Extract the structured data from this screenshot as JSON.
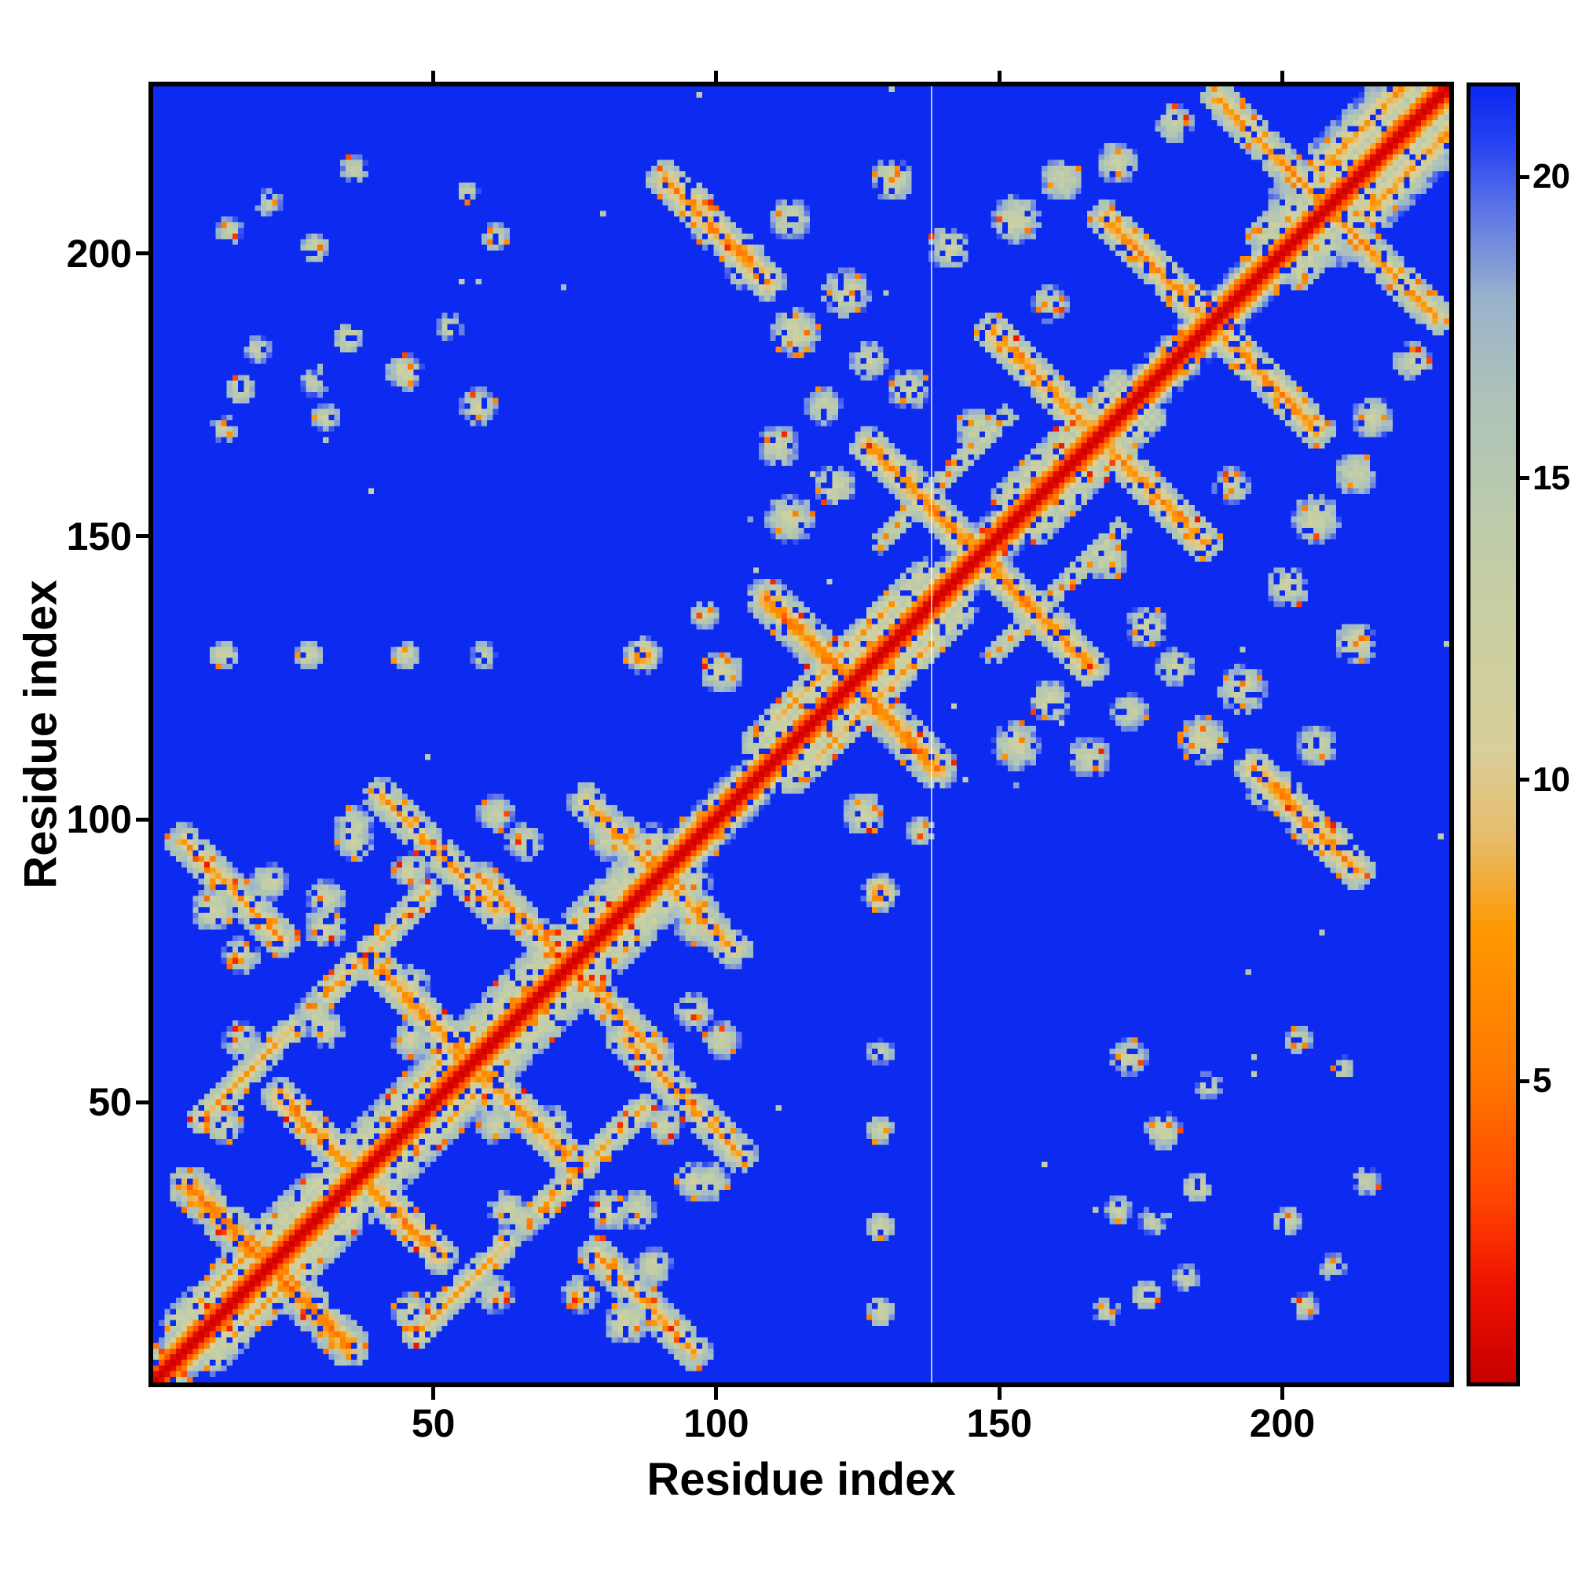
{
  "colors": {
    "page_background": "#ffffff",
    "frame": "#000000",
    "map_background_blue": "#0c2af0",
    "diagonal_red": "#e00000",
    "contact_orange": "#ff8800",
    "mid_pale": "#c9cfa4"
  },
  "chart_data": {
    "type": "heatmap",
    "title": "",
    "xlabel": "Residue index",
    "ylabel": "Residue index",
    "x_range": [
      1,
      229
    ],
    "y_range": [
      1,
      229
    ],
    "x_ticks": [
      50,
      100,
      150,
      200
    ],
    "y_ticks": [
      50,
      100,
      150,
      200
    ],
    "n_residues": 229,
    "background_value": 21.5,
    "colorbar": {
      "position": "right",
      "orientation": "vertical",
      "vmin": 0,
      "vmax": 21.5,
      "ticks": [
        5,
        10,
        15,
        20
      ]
    },
    "colormap": [
      [
        0.0,
        "#c80000"
      ],
      [
        1.5,
        "#ee1100"
      ],
      [
        3.0,
        "#ff4400"
      ],
      [
        5.0,
        "#ff7700"
      ],
      [
        7.5,
        "#ff9900"
      ],
      [
        9.0,
        "#e8bd6a"
      ],
      [
        10.5,
        "#d9cf9b"
      ],
      [
        12.5,
        "#cbd0a2"
      ],
      [
        14.5,
        "#bccbad"
      ],
      [
        16.5,
        "#adc2ba"
      ],
      [
        18.0,
        "#9ab3cd"
      ],
      [
        19.5,
        "#5c74e8"
      ],
      [
        20.6,
        "#2742f2"
      ],
      [
        21.5,
        "#0c2af0"
      ]
    ],
    "diagonal_profile": [
      0.2,
      1.0,
      3.5,
      7.0,
      12.0,
      17.0,
      20.0
    ],
    "features": {
      "streaks": [
        [
          6,
          34,
          34,
          6,
          1.6,
          5.0
        ],
        [
          22,
          50,
          50,
          22,
          1.5,
          6.0
        ],
        [
          40,
          72,
          72,
          40,
          1.5,
          6.0
        ],
        [
          58,
          88,
          88,
          58,
          1.4,
          6.5
        ],
        [
          76,
          102,
          102,
          76,
          1.4,
          6.5
        ],
        [
          5,
          95,
          22,
          78,
          1.4,
          7.0
        ],
        [
          40,
          103,
          60,
          83,
          1.4,
          7.0
        ],
        [
          8,
          46,
          24,
          62,
          1.2,
          8.0
        ],
        [
          30,
          68,
          48,
          86,
          1.2,
          8.5
        ],
        [
          108,
          138,
          138,
          108,
          1.6,
          5.5
        ],
        [
          126,
          165,
          165,
          126,
          1.5,
          6.0
        ],
        [
          148,
          185,
          185,
          148,
          1.5,
          6.5
        ],
        [
          168,
          205,
          205,
          168,
          1.5,
          6.5
        ],
        [
          188,
          226,
          226,
          188,
          1.4,
          6.5
        ],
        [
          90,
          212,
          108,
          194,
          1.5,
          6.5
        ],
        [
          203,
          208,
          224,
          229,
          6.5,
          14.5
        ],
        [
          206,
          214,
          221,
          229,
          1.5,
          7.0
        ],
        [
          196,
          202,
          214,
          220,
          3.5,
          13.5
        ],
        [
          106,
          112,
          136,
          142,
          3.0,
          13.0
        ],
        [
          110,
          117,
          130,
          137,
          1.2,
          8.0
        ],
        [
          4,
          10,
          30,
          36,
          3.0,
          13.0
        ],
        [
          34,
          40,
          58,
          64,
          3.0,
          13.5
        ],
        [
          60,
          66,
          86,
          92,
          3.0,
          13.0
        ],
        [
          8,
          14,
          20,
          26,
          1.1,
          8.0
        ],
        [
          44,
          50,
          56,
          62,
          1.1,
          8.0
        ],
        [
          128,
          148,
          150,
          170,
          2.0,
          13.5
        ],
        [
          150,
          156,
          170,
          176,
          2.5,
          13.5
        ]
      ],
      "blobs": [
        [
          128,
          12,
          2.5,
          12.5
        ],
        [
          128,
          27,
          2.5,
          12
        ],
        [
          128,
          44,
          2.5,
          12.5
        ],
        [
          128,
          58,
          2,
          13
        ],
        [
          128,
          86,
          3,
          6
        ],
        [
          125,
          100,
          3.5,
          12.5
        ],
        [
          135,
          97,
          2.5,
          13
        ],
        [
          172,
          57,
          3,
          12.5
        ],
        [
          178,
          44,
          3,
          12
        ],
        [
          184,
          34,
          2.5,
          12.5
        ],
        [
          170,
          30,
          2,
          13
        ],
        [
          186,
          52,
          2,
          13
        ],
        [
          176,
          28,
          2,
          13
        ],
        [
          200,
          28,
          2.5,
          13
        ],
        [
          208,
          20,
          2,
          13
        ],
        [
          203,
          13,
          2,
          12.5
        ],
        [
          214,
          35,
          2,
          13
        ],
        [
          202,
          60,
          2.5,
          13
        ],
        [
          210,
          55,
          1.8,
          13
        ],
        [
          175,
          15,
          2.5,
          12.5
        ],
        [
          182,
          18,
          2,
          13
        ],
        [
          168,
          12,
          2,
          13
        ],
        [
          112,
          152,
          4,
          12.5
        ],
        [
          110,
          165,
          3.5,
          13
        ],
        [
          120,
          158,
          3.5,
          12.5
        ],
        [
          113,
          185,
          4,
          12
        ],
        [
          122,
          192,
          4,
          12.5
        ],
        [
          112,
          205,
          3.5,
          13
        ],
        [
          130,
          212,
          3.5,
          12.5
        ],
        [
          140,
          200,
          3.5,
          12.5
        ],
        [
          152,
          205,
          4,
          12.5
        ],
        [
          160,
          212,
          3.5,
          13
        ],
        [
          133,
          175,
          3.5,
          13
        ],
        [
          145,
          168,
          3.5,
          13
        ],
        [
          158,
          190,
          3,
          13
        ],
        [
          170,
          215,
          3.5,
          13
        ],
        [
          180,
          222,
          3,
          13
        ],
        [
          98,
          203,
          3,
          12.5
        ],
        [
          104,
          196,
          3,
          13
        ],
        [
          118,
          172,
          3,
          13
        ],
        [
          126,
          180,
          3,
          12.5
        ],
        [
          12,
          45,
          3,
          12.5
        ],
        [
          15,
          60,
          3,
          13
        ],
        [
          10,
          83,
          3.5,
          12
        ],
        [
          28,
          65,
          3,
          13
        ],
        [
          30,
          80,
          3.5,
          12.5
        ],
        [
          45,
          60,
          3,
          13
        ],
        [
          50,
          45,
          3,
          12.5
        ],
        [
          62,
          30,
          3,
          13
        ],
        [
          70,
          45,
          3,
          12.5
        ],
        [
          85,
          30,
          3,
          13
        ],
        [
          90,
          45,
          3,
          12.5
        ],
        [
          75,
          15,
          3,
          13
        ],
        [
          88,
          95,
          3,
          12.5
        ],
        [
          95,
          80,
          3,
          13
        ],
        [
          100,
          60,
          3,
          12.5
        ],
        [
          98,
          35,
          3,
          13
        ],
        [
          65,
          95,
          3,
          12.5
        ],
        [
          35,
          95,
          3,
          13
        ],
        [
          20,
          88,
          3,
          12.5
        ]
      ]
    },
    "noise": {
      "seed": 1234,
      "hole_prob": 0.11,
      "orange_prob": 0.055,
      "red_prob": 0.012,
      "jitter": 3.0,
      "bg_speck_prob": 0.0012
    },
    "artifact_line_x": 138,
    "grid": "off",
    "symmetric": true
  }
}
